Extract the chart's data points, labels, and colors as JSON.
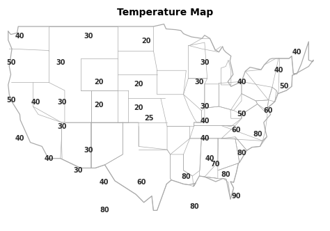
{
  "title": "Temperature Map",
  "title_fontsize": 10,
  "title_fontweight": "bold",
  "background_color": "#ffffff",
  "panel_bg": "#f5f5f5",
  "map_outline_color": "#aaaaaa",
  "map_fill_color": "#ffffff",
  "label_color": "#2b2b2b",
  "label_fontsize": 7.0,
  "label_fontweight": "bold",
  "temperature_labels": [
    {
      "temp": 40,
      "lon": -122.5,
      "lat": 47.8
    },
    {
      "temp": 30,
      "lon": -109.5,
      "lat": 47.8
    },
    {
      "temp": 20,
      "lon": -98.5,
      "lat": 47.2
    },
    {
      "temp": 40,
      "lon": -70.0,
      "lat": 45.8
    },
    {
      "temp": 50,
      "lon": -124.2,
      "lat": 44.5
    },
    {
      "temp": 30,
      "lon": -114.8,
      "lat": 44.5
    },
    {
      "temp": 30,
      "lon": -87.5,
      "lat": 44.5
    },
    {
      "temp": 40,
      "lon": -73.5,
      "lat": 43.5
    },
    {
      "temp": 20,
      "lon": -107.5,
      "lat": 42.0
    },
    {
      "temp": 20,
      "lon": -100.0,
      "lat": 41.8
    },
    {
      "temp": 30,
      "lon": -88.5,
      "lat": 42.0
    },
    {
      "temp": 40,
      "lon": -80.5,
      "lat": 42.0
    },
    {
      "temp": 50,
      "lon": -72.5,
      "lat": 41.5
    },
    {
      "temp": 50,
      "lon": -124.2,
      "lat": 39.8
    },
    {
      "temp": 40,
      "lon": -119.5,
      "lat": 39.5
    },
    {
      "temp": 30,
      "lon": -114.5,
      "lat": 39.5
    },
    {
      "temp": 20,
      "lon": -107.5,
      "lat": 39.2
    },
    {
      "temp": 20,
      "lon": -100.0,
      "lat": 38.8
    },
    {
      "temp": 25,
      "lon": -98.0,
      "lat": 37.5
    },
    {
      "temp": 30,
      "lon": -87.5,
      "lat": 39.0
    },
    {
      "temp": 40,
      "lon": -87.5,
      "lat": 37.2
    },
    {
      "temp": 50,
      "lon": -80.5,
      "lat": 38.0
    },
    {
      "temp": 60,
      "lon": -75.5,
      "lat": 38.5
    },
    {
      "temp": 30,
      "lon": -114.5,
      "lat": 36.5
    },
    {
      "temp": 40,
      "lon": -87.5,
      "lat": 35.0
    },
    {
      "temp": 60,
      "lon": -81.5,
      "lat": 36.0
    },
    {
      "temp": 80,
      "lon": -77.5,
      "lat": 35.5
    },
    {
      "temp": 40,
      "lon": -122.5,
      "lat": 35.0
    },
    {
      "temp": 30,
      "lon": -109.5,
      "lat": 33.5
    },
    {
      "temp": 40,
      "lon": -86.5,
      "lat": 32.5
    },
    {
      "temp": 70,
      "lon": -85.5,
      "lat": 31.8
    },
    {
      "temp": 80,
      "lon": -80.5,
      "lat": 33.2
    },
    {
      "temp": 40,
      "lon": -117.0,
      "lat": 32.5
    },
    {
      "temp": 30,
      "lon": -111.5,
      "lat": 31.0
    },
    {
      "temp": 40,
      "lon": -106.5,
      "lat": 29.5
    },
    {
      "temp": 60,
      "lon": -99.5,
      "lat": 29.5
    },
    {
      "temp": 80,
      "lon": -91.0,
      "lat": 30.2
    },
    {
      "temp": 80,
      "lon": -83.5,
      "lat": 30.5
    },
    {
      "temp": 90,
      "lon": -81.5,
      "lat": 27.8
    },
    {
      "temp": 80,
      "lon": -106.5,
      "lat": 26.0
    },
    {
      "temp": 80,
      "lon": -89.5,
      "lat": 26.5
    }
  ],
  "lon_min": -125,
  "lon_max": -65,
  "lat_min": 24,
  "lat_max": 50
}
